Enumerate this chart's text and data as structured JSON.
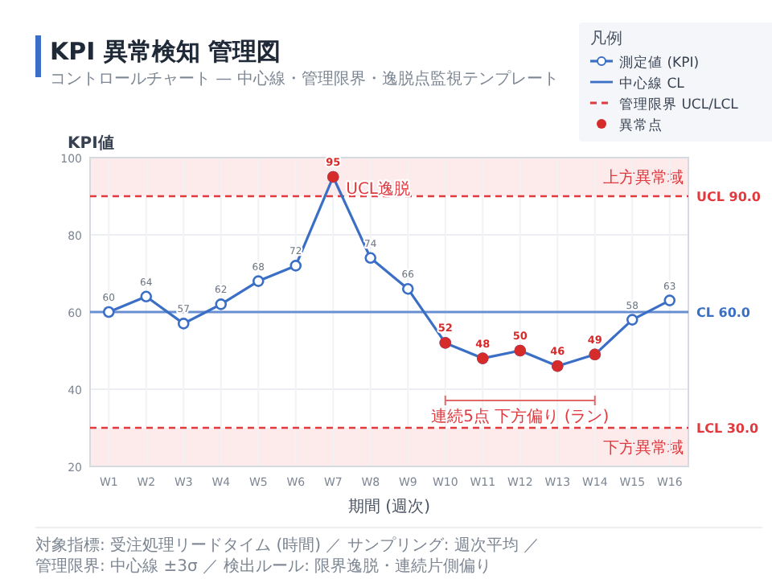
{
  "chart_data": {
    "type": "line",
    "title": "KPI 異常検知 管理図",
    "subtitle": "コントロールチャート — 中心線・管理限界・逸脱点監視テンプレート",
    "xlabel": "期間 (週次)",
    "ylabel": "KPI値",
    "legend_title": "凡例",
    "categories": [
      "W1",
      "W2",
      "W3",
      "W4",
      "W5",
      "W6",
      "W7",
      "W8",
      "W9",
      "W10",
      "W11",
      "W12",
      "W13",
      "W14",
      "W15",
      "W16"
    ],
    "series": [
      {
        "name": "測定値 (KPI)",
        "color": "#3b6fc6",
        "marker": "circle",
        "values": [
          60,
          64,
          57,
          62,
          68,
          72,
          95,
          74,
          66,
          52,
          48,
          50,
          46,
          49,
          58,
          63
        ],
        "value_labels": [
          "60",
          "64",
          "57",
          "62",
          "68",
          "72",
          "95",
          "74",
          "66",
          "52",
          "48",
          "50",
          "46",
          "49",
          "58",
          "63"
        ]
      },
      {
        "name": "異常点",
        "type": "scatter",
        "color": "#d62b2b",
        "values": [
          null,
          null,
          null,
          null,
          null,
          null,
          95,
          null,
          null,
          52,
          48,
          50,
          46,
          49,
          null,
          null
        ]
      }
    ],
    "ylim": [
      20,
      100
    ],
    "yticks": [
      20,
      40,
      60,
      80,
      100
    ],
    "grid": true,
    "legend": "top right",
    "ref_lines": [
      {
        "axis": "y",
        "value": 60,
        "label": "CL 60.0",
        "color": "#3b6fc6",
        "line_style": "solid"
      },
      {
        "axis": "y",
        "value": 90,
        "label": "UCL 90.0",
        "color": "#e0393e",
        "line_style": "dashed"
      },
      {
        "axis": "y",
        "value": 30,
        "label": "LCL 30.0",
        "color": "#e0393e",
        "line_style": "dashed"
      }
    ],
    "bands": [
      {
        "axis": "y",
        "from": 90,
        "to": 100,
        "label": "上方異常域",
        "color": "#fdeaea"
      },
      {
        "axis": "y",
        "from": 20,
        "to": 30,
        "label": "下方異常域",
        "color": "#fdeaea"
      }
    ],
    "annotations": [
      {
        "text": "UCL逸脱",
        "x": "W7",
        "y": 91
      },
      "連続5点 下方偏り (ラン)",
      "中心線 CL",
      "管理限界 UCL/LCL",
      "対象指標: 受注処理リードタイム (時間) ／ サンプリング: 週次平均 ／",
      "管理限界: 中心線 ±3σ ／ 検出ルール: 限界逸脱・連続片側偏り"
    ]
  }
}
